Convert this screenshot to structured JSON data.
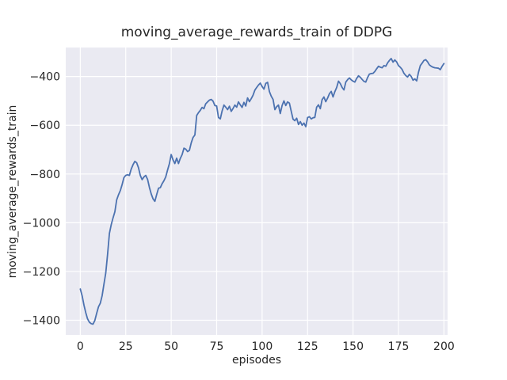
{
  "figure": {
    "title": "moving_average_rewards_train of DDPG",
    "xlabel": "episodes",
    "ylabel": "moving_average_rewards_train"
  },
  "style": {
    "figure_bg": "#ffffff",
    "plot_bg": "#eaeaf2",
    "grid_color": "#ffffff",
    "line_color": "#4c72b0",
    "text_color": "#262626"
  },
  "chart_data": {
    "type": "line",
    "title": "moving_average_rewards_train of DDPG",
    "xlabel": "episodes",
    "ylabel": "moving_average_rewards_train",
    "grid": true,
    "legend_position": "none",
    "xlim": [
      -8,
      202
    ],
    "ylim": [
      -1460,
      -281
    ],
    "xticks": [
      0,
      25,
      50,
      75,
      100,
      125,
      150,
      175,
      200
    ],
    "xtick_labels": [
      "0",
      "25",
      "50",
      "75",
      "100",
      "125",
      "150",
      "175",
      "200"
    ],
    "yticks": [
      -400,
      -600,
      -800,
      -1000,
      -1200,
      -1400
    ],
    "ytick_labels": [
      "−400",
      "−600",
      "−800",
      "−1000",
      "−1200",
      "−1400"
    ],
    "x_start": 0,
    "x_step": 1,
    "series": [
      {
        "name": "moving_average_rewards_train",
        "color": "#4c72b0",
        "values": [
          -1272,
          -1300,
          -1338,
          -1368,
          -1394,
          -1408,
          -1414,
          -1416,
          -1401,
          -1372,
          -1345,
          -1330,
          -1300,
          -1252,
          -1206,
          -1130,
          -1044,
          -1008,
          -980,
          -955,
          -906,
          -885,
          -868,
          -843,
          -815,
          -806,
          -803,
          -806,
          -780,
          -762,
          -748,
          -754,
          -774,
          -806,
          -823,
          -812,
          -806,
          -822,
          -855,
          -882,
          -902,
          -912,
          -884,
          -858,
          -856,
          -840,
          -828,
          -812,
          -784,
          -758,
          -720,
          -742,
          -757,
          -735,
          -757,
          -736,
          -720,
          -694,
          -698,
          -708,
          -703,
          -672,
          -650,
          -640,
          -560,
          -548,
          -539,
          -527,
          -532,
          -512,
          -504,
          -497,
          -494,
          -501,
          -519,
          -521,
          -568,
          -574,
          -541,
          -517,
          -526,
          -536,
          -522,
          -543,
          -531,
          -517,
          -526,
          -504,
          -516,
          -527,
          -506,
          -521,
          -488,
          -503,
          -491,
          -477,
          -456,
          -445,
          -435,
          -427,
          -441,
          -452,
          -428,
          -424,
          -462,
          -481,
          -494,
          -536,
          -524,
          -517,
          -552,
          -519,
          -500,
          -519,
          -504,
          -509,
          -542,
          -575,
          -581,
          -571,
          -597,
          -585,
          -600,
          -591,
          -606,
          -568,
          -565,
          -574,
          -569,
          -568,
          -526,
          -516,
          -532,
          -495,
          -484,
          -503,
          -489,
          -471,
          -461,
          -484,
          -462,
          -445,
          -419,
          -429,
          -445,
          -455,
          -423,
          -413,
          -406,
          -414,
          -419,
          -423,
          -408,
          -397,
          -403,
          -412,
          -420,
          -423,
          -404,
          -390,
          -388,
          -387,
          -379,
          -368,
          -358,
          -362,
          -364,
          -355,
          -358,
          -344,
          -334,
          -326,
          -341,
          -332,
          -340,
          -355,
          -362,
          -371,
          -387,
          -396,
          -402,
          -391,
          -400,
          -415,
          -410,
          -418,
          -382,
          -355,
          -345,
          -334,
          -331,
          -340,
          -352,
          -358,
          -362,
          -364,
          -365,
          -366,
          -372,
          -358,
          -347
        ]
      }
    ]
  }
}
